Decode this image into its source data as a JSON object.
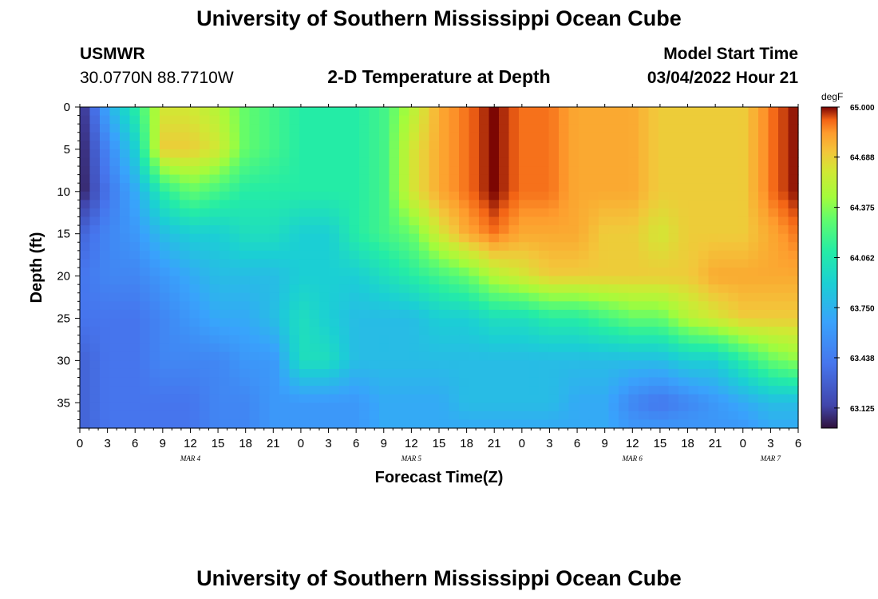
{
  "header": {
    "title": "University of Southern Mississippi Ocean Cube",
    "station": "USMWR",
    "coords": "30.0770N  88.7710W",
    "subtitle": "2-D Temperature at Depth",
    "model_start_label": "Model Start Time",
    "model_start_value": "03/04/2022 Hour 21",
    "footer_title": "University of Southern Mississippi Ocean Cube"
  },
  "chart_data": {
    "type": "heatmap",
    "title": "2-D Temperature at Depth",
    "xlabel": "Forecast Time(Z)",
    "ylabel": "Depth (ft)",
    "x_tick_labels": [
      "0",
      "3",
      "6",
      "9",
      "12",
      "15",
      "18",
      "21",
      "0",
      "3",
      "6",
      "9",
      "12",
      "15",
      "18",
      "21",
      "0",
      "3",
      "6",
      "9",
      "12",
      "15",
      "18",
      "21",
      "0",
      "3",
      "6"
    ],
    "x_date_labels": [
      {
        "label": "MAR 4",
        "tick_index": 4
      },
      {
        "label": "MAR 5",
        "tick_index": 12
      },
      {
        "label": "MAR 6",
        "tick_index": 20
      },
      {
        "label": "MAR 7",
        "tick_index": 25
      }
    ],
    "xlim_hours": [
      0,
      78
    ],
    "ylim_ft": [
      0,
      38
    ],
    "y_ticks": [
      0,
      5,
      10,
      15,
      20,
      25,
      30,
      35
    ],
    "y_inverted": true,
    "colorbar": {
      "unit": "degF",
      "min": 63.0,
      "max": 65.0,
      "tick_labels": [
        "65.000",
        "64.688",
        "64.375",
        "64.062",
        "63.750",
        "63.438",
        "63.125"
      ],
      "tick_values": [
        65.0,
        64.688,
        64.375,
        64.062,
        63.75,
        63.438,
        63.125
      ]
    },
    "grid_hours": [
      0,
      3,
      6,
      9,
      12,
      15,
      18,
      21,
      24,
      27,
      30,
      33,
      36,
      39,
      42,
      45,
      48,
      51,
      54,
      57,
      60,
      63,
      66,
      69,
      72,
      75,
      78
    ],
    "grid_depths_ft": [
      0,
      5,
      10,
      15,
      20,
      25,
      30,
      35,
      38
    ],
    "values_degF": [
      [
        63.0,
        63.7,
        64.1,
        64.6,
        64.6,
        64.5,
        64.3,
        64.2,
        64.1,
        64.1,
        64.1,
        64.2,
        64.5,
        64.8,
        64.9,
        65.0,
        64.9,
        64.9,
        64.8,
        64.8,
        64.8,
        64.7,
        64.7,
        64.7,
        64.7,
        64.9,
        65.0
      ],
      [
        63.0,
        63.5,
        63.9,
        64.7,
        64.7,
        64.6,
        64.3,
        64.2,
        64.1,
        64.1,
        64.1,
        64.2,
        64.6,
        64.8,
        64.9,
        65.0,
        64.9,
        64.9,
        64.8,
        64.8,
        64.8,
        64.7,
        64.7,
        64.7,
        64.7,
        64.9,
        65.0
      ],
      [
        63.0,
        63.4,
        63.7,
        64.1,
        64.3,
        64.2,
        64.1,
        64.1,
        64.1,
        64.1,
        64.1,
        64.2,
        64.6,
        64.8,
        64.9,
        65.0,
        64.9,
        64.9,
        64.8,
        64.8,
        64.8,
        64.7,
        64.7,
        64.7,
        64.7,
        64.9,
        65.0
      ],
      [
        63.3,
        63.5,
        63.6,
        63.8,
        63.9,
        63.9,
        64.0,
        64.0,
        63.9,
        63.9,
        64.1,
        64.2,
        64.3,
        64.6,
        64.8,
        64.9,
        64.8,
        64.8,
        64.8,
        64.7,
        64.7,
        64.6,
        64.7,
        64.7,
        64.7,
        64.8,
        64.9
      ],
      [
        63.4,
        63.5,
        63.5,
        63.6,
        63.7,
        63.8,
        63.8,
        63.8,
        63.9,
        63.9,
        63.9,
        64.0,
        64.1,
        64.2,
        64.3,
        64.5,
        64.6,
        64.7,
        64.7,
        64.7,
        64.7,
        64.7,
        64.7,
        64.8,
        64.8,
        64.8,
        64.8
      ],
      [
        63.4,
        63.4,
        63.4,
        63.5,
        63.6,
        63.7,
        63.7,
        63.8,
        64.0,
        63.9,
        63.8,
        63.8,
        63.8,
        63.9,
        63.9,
        64.0,
        64.0,
        64.1,
        64.1,
        64.2,
        64.3,
        64.3,
        64.5,
        64.6,
        64.7,
        64.7,
        64.7
      ],
      [
        63.3,
        63.4,
        63.4,
        63.5,
        63.5,
        63.5,
        63.6,
        63.6,
        64.0,
        64.0,
        63.8,
        63.8,
        63.8,
        63.8,
        63.8,
        63.8,
        63.8,
        63.8,
        63.8,
        63.8,
        63.8,
        63.8,
        63.9,
        63.9,
        64.1,
        64.3,
        64.4
      ],
      [
        63.3,
        63.4,
        63.4,
        63.4,
        63.4,
        63.5,
        63.5,
        63.6,
        63.6,
        63.6,
        63.6,
        63.7,
        63.7,
        63.7,
        63.8,
        63.8,
        63.8,
        63.8,
        63.7,
        63.7,
        63.5,
        63.4,
        63.5,
        63.6,
        63.7,
        63.8,
        63.8
      ],
      [
        63.3,
        63.4,
        63.4,
        63.4,
        63.4,
        63.5,
        63.5,
        63.6,
        63.6,
        63.6,
        63.6,
        63.7,
        63.7,
        63.7,
        63.7,
        63.7,
        63.7,
        63.7,
        63.7,
        63.7,
        63.6,
        63.6,
        63.6,
        63.6,
        63.6,
        63.7,
        63.7
      ]
    ]
  }
}
